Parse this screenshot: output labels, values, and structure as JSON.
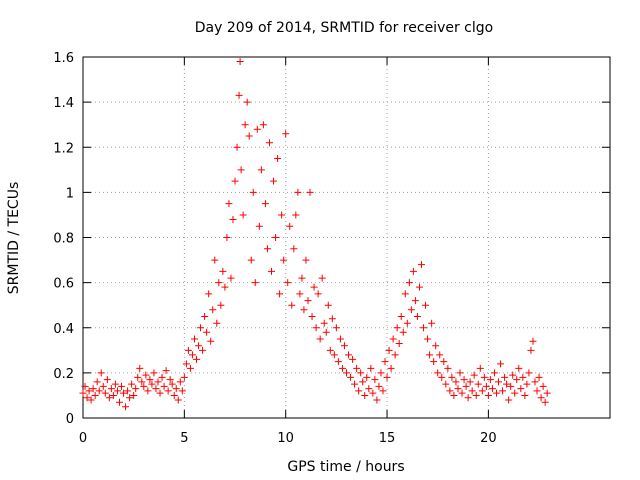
{
  "chart_data": {
    "type": "scatter",
    "title": "Day 209 of 2014, SRMTID for receiver clgo",
    "xlabel": "GPS time / hours",
    "ylabel": "SRMTID / TECUs",
    "xlim": [
      0,
      26
    ],
    "ylim": [
      0,
      1.6
    ],
    "x_ticks": [
      "0",
      "5",
      "10",
      "15",
      "20"
    ],
    "x_tick_values": [
      0,
      5,
      10,
      15,
      20
    ],
    "y_ticks": [
      "0",
      "0.2",
      "0.4",
      "0.6",
      "0.8",
      "1",
      "1.2",
      "1.4",
      "1.6"
    ],
    "y_tick_values": [
      0,
      0.2,
      0.4,
      0.6,
      0.8,
      1,
      1.2,
      1.4,
      1.6
    ],
    "grid": true,
    "marker": "+",
    "color": "#ff0000",
    "series": [
      {
        "name": "SRMTID",
        "points": [
          [
            0.0,
            0.11
          ],
          [
            0.1,
            0.14
          ],
          [
            0.2,
            0.09
          ],
          [
            0.3,
            0.12
          ],
          [
            0.4,
            0.08
          ],
          [
            0.5,
            0.13
          ],
          [
            0.6,
            0.1
          ],
          [
            0.7,
            0.16
          ],
          [
            0.8,
            0.12
          ],
          [
            0.9,
            0.2
          ],
          [
            1.0,
            0.14
          ],
          [
            1.1,
            0.11
          ],
          [
            1.2,
            0.17
          ],
          [
            1.3,
            0.09
          ],
          [
            1.4,
            0.13
          ],
          [
            1.5,
            0.1
          ],
          [
            1.6,
            0.15
          ],
          [
            1.7,
            0.12
          ],
          [
            1.8,
            0.07
          ],
          [
            1.9,
            0.14
          ],
          [
            2.0,
            0.11
          ],
          [
            2.1,
            0.05
          ],
          [
            2.2,
            0.12
          ],
          [
            2.3,
            0.09
          ],
          [
            2.4,
            0.15
          ],
          [
            2.5,
            0.1
          ],
          [
            2.6,
            0.13
          ],
          [
            2.7,
            0.18
          ],
          [
            2.8,
            0.22
          ],
          [
            2.9,
            0.16
          ],
          [
            3.0,
            0.14
          ],
          [
            3.1,
            0.19
          ],
          [
            3.2,
            0.12
          ],
          [
            3.3,
            0.17
          ],
          [
            3.4,
            0.15
          ],
          [
            3.5,
            0.2
          ],
          [
            3.6,
            0.13
          ],
          [
            3.7,
            0.16
          ],
          [
            3.8,
            0.11
          ],
          [
            3.9,
            0.18
          ],
          [
            4.0,
            0.14
          ],
          [
            4.1,
            0.21
          ],
          [
            4.2,
            0.12
          ],
          [
            4.3,
            0.17
          ],
          [
            4.4,
            0.15
          ],
          [
            4.5,
            0.1
          ],
          [
            4.6,
            0.13
          ],
          [
            4.7,
            0.08
          ],
          [
            4.8,
            0.16
          ],
          [
            4.9,
            0.12
          ],
          [
            5.0,
            0.18
          ],
          [
            5.1,
            0.24
          ],
          [
            5.2,
            0.3
          ],
          [
            5.3,
            0.22
          ],
          [
            5.4,
            0.28
          ],
          [
            5.5,
            0.35
          ],
          [
            5.6,
            0.26
          ],
          [
            5.7,
            0.32
          ],
          [
            5.8,
            0.4
          ],
          [
            5.9,
            0.3
          ],
          [
            6.0,
            0.45
          ],
          [
            6.1,
            0.38
          ],
          [
            6.2,
            0.55
          ],
          [
            6.3,
            0.34
          ],
          [
            6.4,
            0.48
          ],
          [
            6.5,
            0.7
          ],
          [
            6.6,
            0.42
          ],
          [
            6.7,
            0.6
          ],
          [
            6.8,
            0.5
          ],
          [
            6.9,
            0.65
          ],
          [
            7.0,
            0.58
          ],
          [
            7.1,
            0.8
          ],
          [
            7.2,
            0.95
          ],
          [
            7.3,
            0.62
          ],
          [
            7.4,
            0.88
          ],
          [
            7.5,
            1.05
          ],
          [
            7.6,
            1.2
          ],
          [
            7.7,
            1.43
          ],
          [
            7.75,
            1.58
          ],
          [
            7.8,
            1.1
          ],
          [
            7.9,
            0.9
          ],
          [
            8.0,
            1.3
          ],
          [
            8.1,
            1.4
          ],
          [
            8.2,
            1.25
          ],
          [
            8.3,
            0.7
          ],
          [
            8.4,
            1.0
          ],
          [
            8.5,
            0.6
          ],
          [
            8.6,
            1.28
          ],
          [
            8.7,
            0.85
          ],
          [
            8.8,
            1.1
          ],
          [
            8.9,
            1.3
          ],
          [
            9.0,
            0.95
          ],
          [
            9.1,
            0.75
          ],
          [
            9.2,
            1.22
          ],
          [
            9.3,
            0.65
          ],
          [
            9.4,
            1.05
          ],
          [
            9.5,
            0.8
          ],
          [
            9.6,
            1.15
          ],
          [
            9.7,
            0.55
          ],
          [
            9.8,
            0.9
          ],
          [
            9.9,
            0.7
          ],
          [
            10.0,
            1.26
          ],
          [
            10.1,
            0.6
          ],
          [
            10.2,
            0.85
          ],
          [
            10.3,
            0.5
          ],
          [
            10.4,
            0.75
          ],
          [
            10.5,
            0.9
          ],
          [
            10.6,
            1.0
          ],
          [
            10.7,
            0.55
          ],
          [
            10.8,
            0.62
          ],
          [
            10.9,
            0.48
          ],
          [
            11.0,
            0.7
          ],
          [
            11.1,
            0.52
          ],
          [
            11.2,
            1.0
          ],
          [
            11.3,
            0.45
          ],
          [
            11.4,
            0.58
          ],
          [
            11.5,
            0.4
          ],
          [
            11.6,
            0.55
          ],
          [
            11.7,
            0.35
          ],
          [
            11.8,
            0.62
          ],
          [
            11.9,
            0.42
          ],
          [
            12.0,
            0.38
          ],
          [
            12.1,
            0.5
          ],
          [
            12.2,
            0.3
          ],
          [
            12.3,
            0.44
          ],
          [
            12.4,
            0.28
          ],
          [
            12.5,
            0.4
          ],
          [
            12.6,
            0.25
          ],
          [
            12.7,
            0.35
          ],
          [
            12.8,
            0.22
          ],
          [
            12.9,
            0.32
          ],
          [
            13.0,
            0.2
          ],
          [
            13.1,
            0.28
          ],
          [
            13.2,
            0.18
          ],
          [
            13.3,
            0.26
          ],
          [
            13.4,
            0.15
          ],
          [
            13.5,
            0.22
          ],
          [
            13.6,
            0.12
          ],
          [
            13.7,
            0.2
          ],
          [
            13.8,
            0.16
          ],
          [
            13.9,
            0.1
          ],
          [
            14.0,
            0.18
          ],
          [
            14.1,
            0.13
          ],
          [
            14.2,
            0.22
          ],
          [
            14.3,
            0.11
          ],
          [
            14.4,
            0.17
          ],
          [
            14.5,
            0.08
          ],
          [
            14.6,
            0.14
          ],
          [
            14.7,
            0.2
          ],
          [
            14.8,
            0.12
          ],
          [
            14.9,
            0.25
          ],
          [
            15.0,
            0.18
          ],
          [
            15.1,
            0.3
          ],
          [
            15.2,
            0.22
          ],
          [
            15.3,
            0.35
          ],
          [
            15.4,
            0.28
          ],
          [
            15.5,
            0.4
          ],
          [
            15.6,
            0.33
          ],
          [
            15.7,
            0.45
          ],
          [
            15.8,
            0.38
          ],
          [
            15.9,
            0.55
          ],
          [
            16.0,
            0.42
          ],
          [
            16.1,
            0.6
          ],
          [
            16.2,
            0.48
          ],
          [
            16.3,
            0.65
          ],
          [
            16.4,
            0.52
          ],
          [
            16.5,
            0.45
          ],
          [
            16.6,
            0.58
          ],
          [
            16.7,
            0.68
          ],
          [
            16.8,
            0.4
          ],
          [
            16.9,
            0.5
          ],
          [
            17.0,
            0.35
          ],
          [
            17.1,
            0.28
          ],
          [
            17.2,
            0.42
          ],
          [
            17.3,
            0.25
          ],
          [
            17.4,
            0.32
          ],
          [
            17.5,
            0.2
          ],
          [
            17.6,
            0.28
          ],
          [
            17.7,
            0.18
          ],
          [
            17.8,
            0.25
          ],
          [
            17.9,
            0.15
          ],
          [
            18.0,
            0.22
          ],
          [
            18.1,
            0.12
          ],
          [
            18.2,
            0.18
          ],
          [
            18.3,
            0.1
          ],
          [
            18.4,
            0.16
          ],
          [
            18.5,
            0.13
          ],
          [
            18.6,
            0.2
          ],
          [
            18.7,
            0.11
          ],
          [
            18.8,
            0.17
          ],
          [
            18.9,
            0.14
          ],
          [
            19.0,
            0.09
          ],
          [
            19.1,
            0.16
          ],
          [
            19.2,
            0.12
          ],
          [
            19.3,
            0.19
          ],
          [
            19.4,
            0.1
          ],
          [
            19.5,
            0.15
          ],
          [
            19.6,
            0.22
          ],
          [
            19.7,
            0.12
          ],
          [
            19.8,
            0.18
          ],
          [
            19.9,
            0.14
          ],
          [
            20.0,
            0.1
          ],
          [
            20.1,
            0.17
          ],
          [
            20.2,
            0.13
          ],
          [
            20.3,
            0.2
          ],
          [
            20.4,
            0.11
          ],
          [
            20.5,
            0.16
          ],
          [
            20.6,
            0.24
          ],
          [
            20.7,
            0.12
          ],
          [
            20.8,
            0.18
          ],
          [
            20.9,
            0.15
          ],
          [
            21.0,
            0.08
          ],
          [
            21.1,
            0.14
          ],
          [
            21.2,
            0.19
          ],
          [
            21.3,
            0.11
          ],
          [
            21.4,
            0.17
          ],
          [
            21.5,
            0.22
          ],
          [
            21.6,
            0.13
          ],
          [
            21.7,
            0.18
          ],
          [
            21.8,
            0.1
          ],
          [
            21.9,
            0.15
          ],
          [
            22.0,
            0.2
          ],
          [
            22.1,
            0.3
          ],
          [
            22.2,
            0.34
          ],
          [
            22.3,
            0.16
          ],
          [
            22.4,
            0.12
          ],
          [
            22.5,
            0.18
          ],
          [
            22.6,
            0.09
          ],
          [
            22.7,
            0.14
          ],
          [
            22.8,
            0.07
          ],
          [
            22.9,
            0.11
          ]
        ]
      }
    ]
  }
}
